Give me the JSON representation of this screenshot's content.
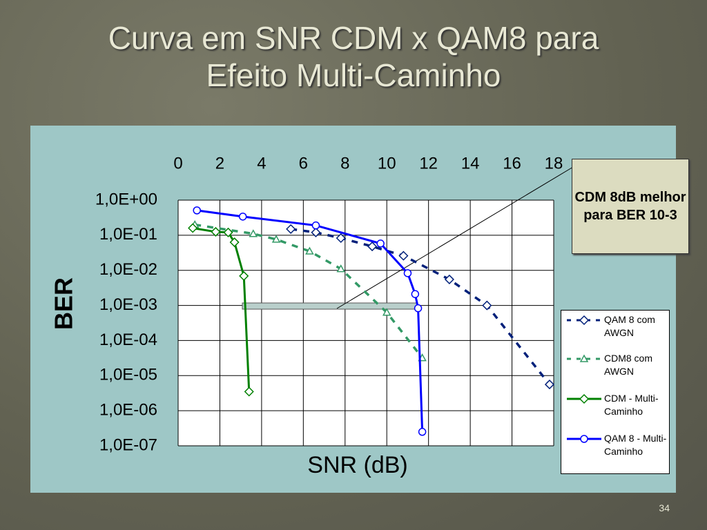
{
  "title": "Curva em SNR CDM x QAM8 para Efeito Multi-Caminho",
  "slide_number": "34",
  "annotation": "CDM 8dB melhor para BER 10-3",
  "chart_data": {
    "type": "line",
    "xlabel": "SNR (dB)",
    "ylabel": "BER",
    "xlim": [
      0,
      18
    ],
    "xticks": [
      0,
      2,
      4,
      6,
      8,
      10,
      12,
      14,
      16,
      18
    ],
    "ylim": [
      1e-07,
      1
    ],
    "yscale": "log",
    "grid": true,
    "yticks": [
      {
        "value": 1,
        "label": "1,0E+00"
      },
      {
        "value": 0.1,
        "label": "1,0E-01"
      },
      {
        "value": 0.01,
        "label": "1,0E-02"
      },
      {
        "value": 0.001,
        "label": "1,0E-03"
      },
      {
        "value": 0.0001,
        "label": "1,0E-04"
      },
      {
        "value": 1e-05,
        "label": "1,0E-05"
      },
      {
        "value": 1e-06,
        "label": "1,0E-06"
      },
      {
        "value": 1e-07,
        "label": "1,0E-07"
      }
    ],
    "legend": "right",
    "series": [
      {
        "name": "QAM 8 com AWGN",
        "color": "#00207a",
        "dash": true,
        "marker": "diamond",
        "x": [
          5.4,
          6.6,
          7.8,
          9.3,
          10.8,
          13.0,
          14.8,
          17.8
        ],
        "values": [
          0.15,
          0.12,
          0.083,
          0.048,
          0.026,
          0.0055,
          0.001,
          5.6e-06
        ]
      },
      {
        "name": "CDM8 com AWGN",
        "color": "#339966",
        "dash": true,
        "marker": "triangle",
        "x": [
          0.8,
          3.6,
          4.7,
          6.3,
          7.8,
          10.0,
          11.7
        ],
        "values": [
          0.2,
          0.11,
          0.076,
          0.035,
          0.011,
          0.00063,
          3.2e-05
        ]
      },
      {
        "name": "CDM - Multi-Caminho",
        "color": "#008000",
        "dash": false,
        "marker": "diamond",
        "x": [
          0.7,
          1.8,
          2.4,
          2.7,
          3.15,
          3.4
        ],
        "values": [
          0.16,
          0.125,
          0.12,
          0.063,
          0.0069,
          3.5e-06
        ]
      },
      {
        "name": "QAM 8 - Multi-Caminho",
        "color": "#0000ff",
        "dash": false,
        "marker": "circle",
        "x": [
          0.9,
          3.1,
          6.6,
          9.7,
          11.0,
          11.36,
          11.5,
          11.7
        ],
        "values": [
          0.51,
          0.34,
          0.19,
          0.058,
          0.0083,
          0.0021,
          0.00083,
          2.5e-07
        ]
      }
    ]
  }
}
